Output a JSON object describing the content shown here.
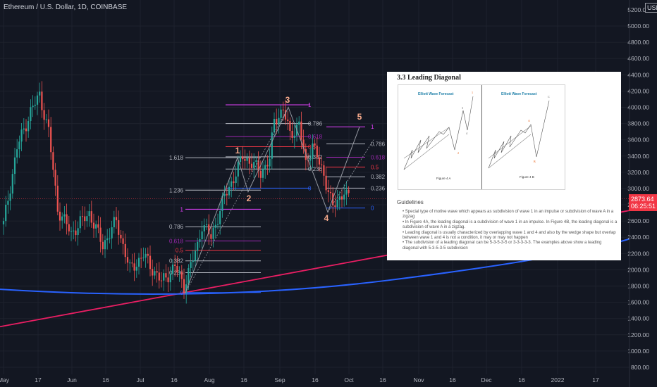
{
  "header": {
    "symbol_title": "Ethereum / U.S. Dollar, 1D, COINBASE",
    "currency": "USD"
  },
  "colors": {
    "background": "#131722",
    "up": "#26a69a",
    "down": "#ef5350",
    "fib_white": "#b2b5be",
    "fib_magenta": "#e040fb",
    "fib_purple": "#9c27b0",
    "fib_red": "#f23645",
    "fib_blue": "#2962ff",
    "pink_line": "#e91e63",
    "blue_curve": "#2962ff",
    "wave_label": "#f5a98b"
  },
  "price_tag": {
    "price": "2873.64",
    "countdown": "06:25:51"
  },
  "chart_data": {
    "type": "candlestick",
    "title": "Ethereum / U.S. Dollar, 1D, COINBASE",
    "y_axis": {
      "ticks": [
        "5200.00",
        "5000.00",
        "4800.00",
        "4600.00",
        "4400.00",
        "4200.00",
        "4000.00",
        "3800.00",
        "3600.00",
        "3400.00",
        "3200.00",
        "3000.00",
        "2800.00",
        "2600.00",
        "2400.00",
        "2200.00",
        "2000.00",
        "1800.00",
        "1600.00",
        "1400.00",
        "1200.00",
        "1000.00",
        "800.00"
      ],
      "ylim": [
        700,
        5300
      ]
    },
    "x_axis": {
      "ticks": [
        "May",
        "17",
        "Jun",
        "16",
        "Jul",
        "16",
        "Aug",
        "16",
        "Sep",
        "16",
        "Oct",
        "16",
        "Nov",
        "16",
        "Dec",
        "16",
        "2022",
        "17"
      ]
    },
    "close_price": 2873.64,
    "fib_levels": [
      {
        "label": "1",
        "value": 4030,
        "color": "fib_magenta"
      },
      {
        "label": "0.786",
        "value": 3800,
        "color": "fib_white"
      },
      {
        "label": "0.618",
        "value": 3640,
        "color": "fib_purple"
      },
      {
        "label": "0.5",
        "value": 3515,
        "color": "fib_red"
      },
      {
        "label": "0.382",
        "value": 3390,
        "color": "fib_white"
      },
      {
        "label": "0.236",
        "value": 3240,
        "color": "fib_white"
      },
      {
        "label": "0",
        "value": 3005,
        "color": "fib_blue"
      },
      {
        "label": "1.618",
        "value": 3380,
        "color": "fib_white"
      },
      {
        "label": "1.236",
        "value": 2980,
        "color": "fib_white"
      },
      {
        "label": "1",
        "value": 2745,
        "color": "fib_magenta"
      },
      {
        "label": "0.786",
        "value": 2530,
        "color": "fib_white"
      },
      {
        "label": "0.618",
        "value": 2355,
        "color": "fib_purple"
      },
      {
        "label": "0.5",
        "value": 2240,
        "color": "fib_red"
      },
      {
        "label": "0.382",
        "value": 2110,
        "color": "fib_white"
      },
      {
        "label": "0.236",
        "value": 1965,
        "color": "fib_white"
      },
      {
        "label": "0",
        "value": 1720,
        "color": "fib_blue"
      },
      {
        "label": "1",
        "value": 3760,
        "color": "fib_magenta"
      },
      {
        "label": "0.786",
        "value": 3550,
        "color": "fib_white"
      },
      {
        "label": "0.618",
        "value": 3385,
        "color": "fib_purple"
      },
      {
        "label": "0.5",
        "value": 3265,
        "color": "fib_red"
      },
      {
        "label": "0.382",
        "value": 3145,
        "color": "fib_white"
      },
      {
        "label": "0.236",
        "value": 3005,
        "color": "fib_white"
      },
      {
        "label": "0",
        "value": 2760,
        "color": "fib_blue"
      }
    ],
    "wave_labels": [
      {
        "label": "1",
        "date_index": 88,
        "price": 3560
      },
      {
        "label": "2",
        "date_index": 92,
        "price": 2830
      },
      {
        "label": "3",
        "date_index": 107,
        "price": 4130
      },
      {
        "label": "4",
        "date_index": 121,
        "price": 2620
      },
      {
        "label": "5",
        "date_index": 133,
        "price": 3950
      }
    ]
  },
  "guide": {
    "heading": "3.3 Leading Diagonal",
    "fig_a_logo": "Elliott Wave Forecast",
    "fig_b_logo": "Elliott Wave Forecast",
    "fig_a_caption": "Figure 4 A",
    "fig_b_caption": "Figure 4 B",
    "subheading": "Guidelines",
    "bullets": [
      "• Special type of motive wave which appears as subdivision of wave 1 in an impulse or subdivision of wave A in a zigzag",
      "• In Figure 4A, the leading diagonal is a subdivision of wave 1 in an impulse. In Figure 4B, the leading diagonal is a subdivision of wave A in a zigzag.",
      "• Leading diagonal is usually characterized by overlapping wave 1 and 4 and also by the wedge shape but overlap between wave 1 and 4 is not a condition, it may or may not happen",
      "• The subdivision of a leading diagonal can be 5-3-5-3-5 or 3-3-3-3-3. The examples above show a leading diagonal with 5-3-5-3-5 subdivision"
    ]
  }
}
